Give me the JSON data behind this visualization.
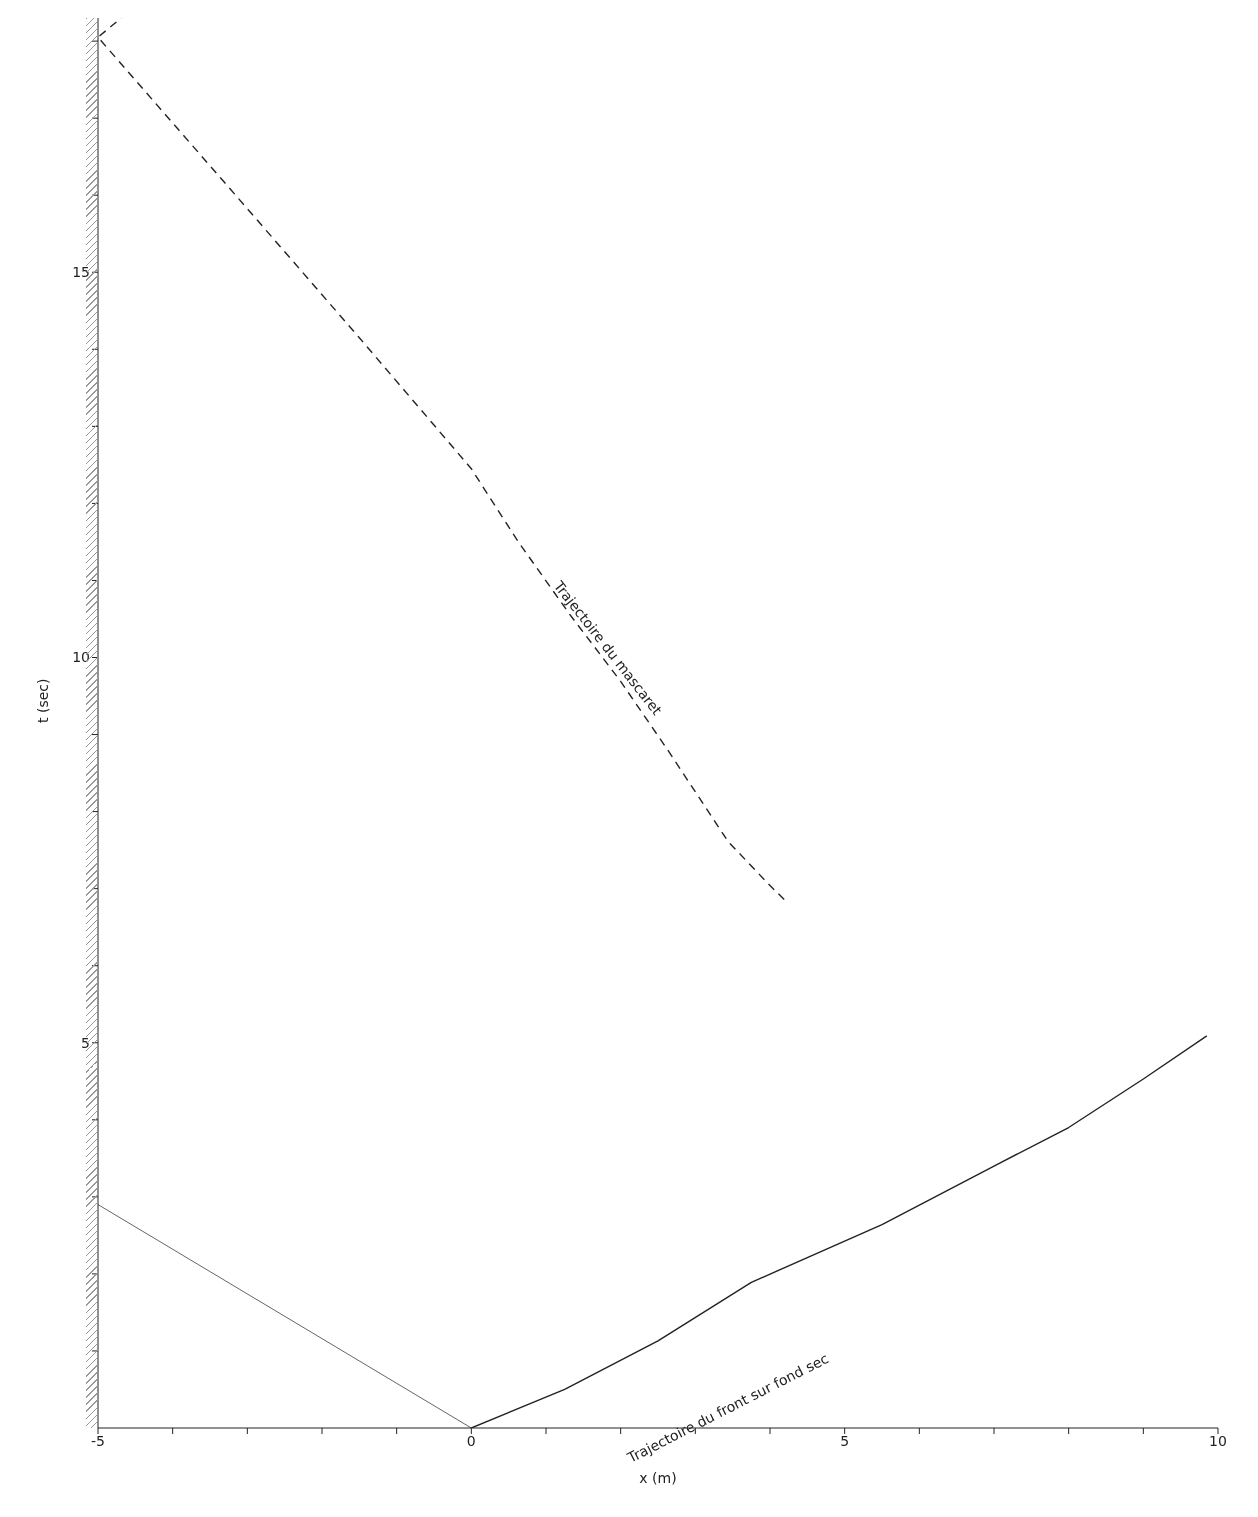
{
  "chart_data": {
    "type": "line",
    "xlabel": "x (m)",
    "ylabel": "t (sec)",
    "xlim": [
      -5,
      10
    ],
    "ylim": [
      0,
      18.3
    ],
    "xticks": [
      -5,
      {
        "value": -4,
        "label": null
      },
      {
        "value": -3,
        "label": null
      },
      {
        "value": -2,
        "label": null
      },
      {
        "value": -1,
        "label": null
      },
      0,
      {
        "value": 1,
        "label": null
      },
      {
        "value": 2,
        "label": null
      },
      {
        "value": 3,
        "label": null
      },
      {
        "value": 4,
        "label": null
      },
      5,
      {
        "value": 6,
        "label": null
      },
      {
        "value": 7,
        "label": null
      },
      {
        "value": 8,
        "label": null
      },
      {
        "value": 9,
        "label": null
      },
      10
    ],
    "yticks": [
      {
        "value": 1,
        "label": null
      },
      {
        "value": 2,
        "label": null
      },
      {
        "value": 3,
        "label": null
      },
      {
        "value": 4,
        "label": null
      },
      5,
      {
        "value": 6,
        "label": null
      },
      {
        "value": 7,
        "label": null
      },
      {
        "value": 8,
        "label": null
      },
      {
        "value": 9,
        "label": null
      },
      10,
      {
        "value": 11,
        "label": null
      },
      {
        "value": 12,
        "label": null
      },
      {
        "value": 13,
        "label": null
      },
      {
        "value": 14,
        "label": null
      },
      15,
      {
        "value": 16,
        "label": null
      },
      {
        "value": 17,
        "label": null
      },
      {
        "value": 18,
        "label": null
      }
    ],
    "grid": false,
    "legend": false,
    "marker": "none",
    "series": [
      {
        "color": "#222222",
        "line_style": "dashed",
        "x": [
          4.19,
          4.0,
          3.44,
          2.63,
          2.0,
          1.31,
          0.63,
          0.0,
          -1.5,
          -3.13,
          -5.0,
          -4.69
        ],
        "values": [
          6.86,
          7.04,
          7.61,
          8.8,
          9.69,
          10.57,
          11.5,
          12.45,
          14.15,
          15.97,
          18.05,
          18.3
        ]
      },
      {
        "color": "#222222",
        "line_style": "solid",
        "x": [
          0,
          1.25,
          2.5,
          3.75,
          5.5,
          7.0,
          8.0,
          9.0,
          9.85
        ],
        "values": [
          0,
          0.5,
          1.13,
          1.89,
          2.64,
          3.4,
          3.9,
          4.53,
          5.09
        ]
      },
      {
        "color": "#666666",
        "line_style": "solid",
        "x": [
          0,
          -5
        ],
        "values": [
          0,
          2.9
        ]
      }
    ],
    "annotations": [
      "Trajectoire du mascaret",
      "Trajectoire du front sur fond sec"
    ]
  }
}
